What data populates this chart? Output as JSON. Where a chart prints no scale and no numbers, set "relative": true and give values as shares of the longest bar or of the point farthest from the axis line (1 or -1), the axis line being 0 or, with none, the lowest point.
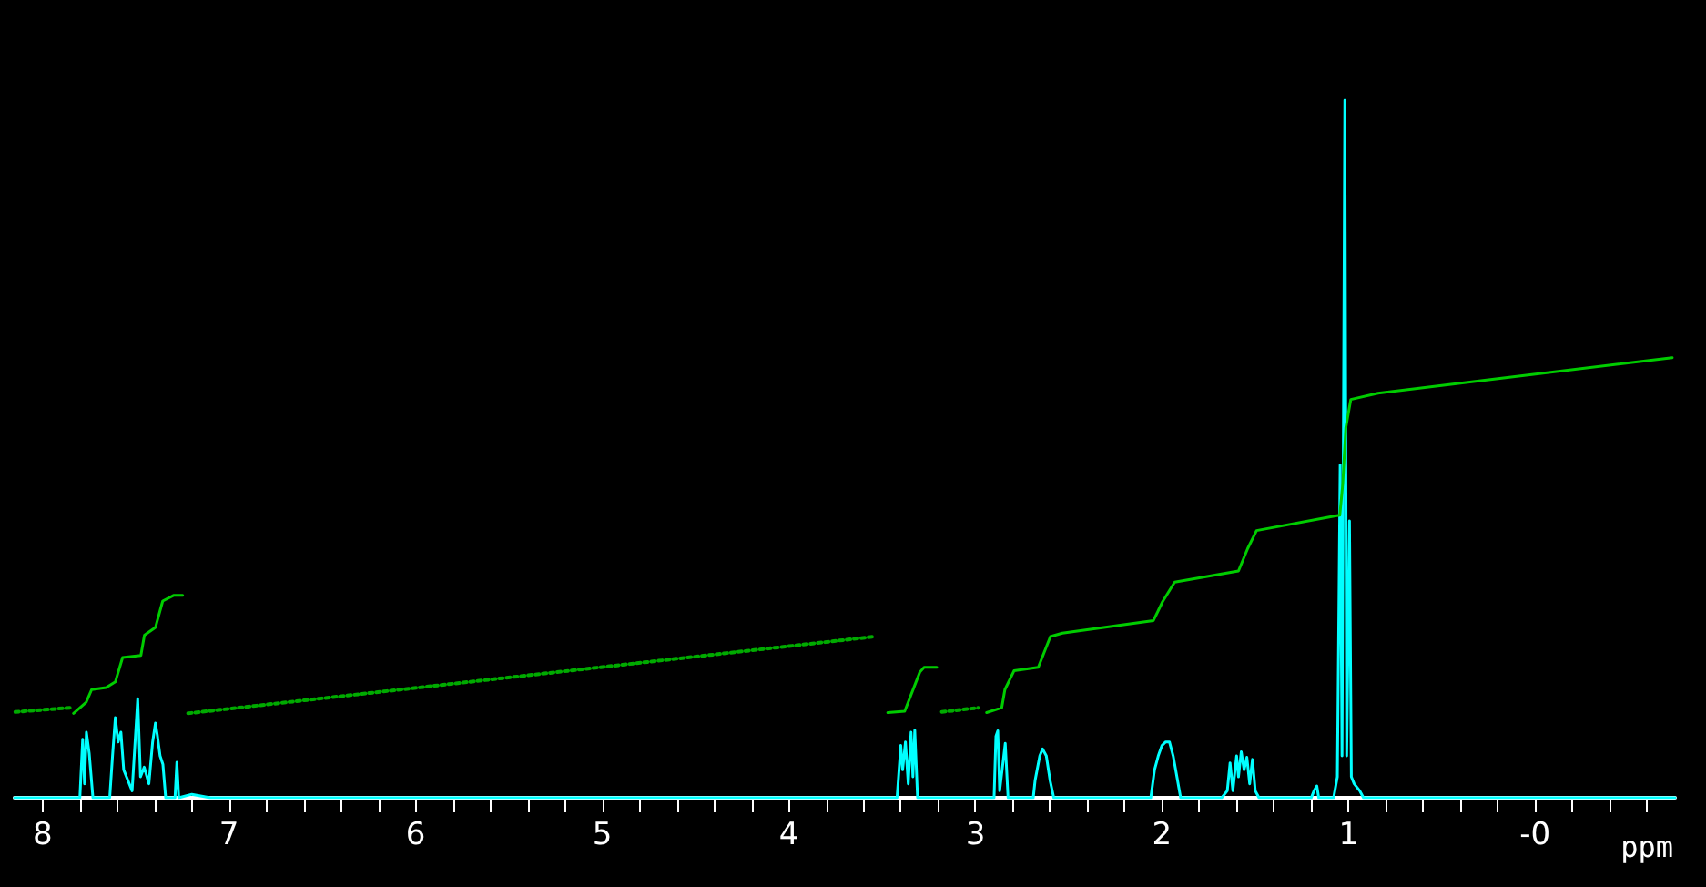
{
  "chart_data": {
    "type": "line",
    "relative": true,
    "xlabel": "ppm",
    "xlim": [
      8.15,
      -0.75
    ],
    "xticks": [
      8,
      {
        "value": 7.8,
        "label": null
      },
      {
        "value": 7.6,
        "label": null
      },
      {
        "value": 7.4,
        "label": null
      },
      {
        "value": 7.2,
        "label": null
      },
      7,
      {
        "value": 6.8,
        "label": null
      },
      {
        "value": 6.6,
        "label": null
      },
      {
        "value": 6.4,
        "label": null
      },
      {
        "value": 6.2,
        "label": null
      },
      6,
      {
        "value": 5.8,
        "label": null
      },
      {
        "value": 5.6,
        "label": null
      },
      {
        "value": 5.4,
        "label": null
      },
      {
        "value": 5.2,
        "label": null
      },
      5,
      {
        "value": 4.8,
        "label": null
      },
      {
        "value": 4.6,
        "label": null
      },
      {
        "value": 4.4,
        "label": null
      },
      {
        "value": 4.2,
        "label": null
      },
      4,
      {
        "value": 3.8,
        "label": null
      },
      {
        "value": 3.6,
        "label": null
      },
      {
        "value": 3.4,
        "label": null
      },
      {
        "value": 3.2,
        "label": null
      },
      3,
      {
        "value": 2.8,
        "label": null
      },
      {
        "value": 2.6,
        "label": null
      },
      {
        "value": 2.4,
        "label": null
      },
      {
        "value": 2.2,
        "label": null
      },
      2,
      {
        "value": 1.8,
        "label": null
      },
      {
        "value": 1.6,
        "label": null
      },
      {
        "value": 1.4,
        "label": null
      },
      {
        "value": 1.2,
        "label": null
      },
      1,
      {
        "value": 0.8,
        "label": null
      },
      {
        "value": 0.6,
        "label": null
      },
      {
        "value": 0.4,
        "label": null
      },
      {
        "value": 0.2,
        "label": null
      },
      {
        "value": 0,
        "label": "-0"
      },
      {
        "value": -0.2,
        "label": null
      },
      {
        "value": -0.4,
        "label": null
      },
      {
        "value": -0.6,
        "label": null
      }
    ],
    "grid": false,
    "marker": "none",
    "series": [
      {
        "color": "#00ffff",
        "line_style": "solid",
        "x": [
          8.15,
          7.8,
          7.785,
          7.775,
          7.765,
          7.75,
          7.73,
          7.64,
          7.625,
          7.61,
          7.595,
          7.58,
          7.565,
          7.52,
          7.49,
          7.475,
          7.455,
          7.43,
          7.41,
          7.395,
          7.385,
          7.37,
          7.355,
          7.34,
          7.29,
          7.28,
          7.27,
          7.2,
          7.1,
          3.42,
          3.4,
          3.39,
          3.375,
          3.36,
          3.345,
          3.335,
          3.325,
          3.31,
          2.9,
          2.89,
          2.88,
          2.87,
          2.84,
          2.825,
          2.69,
          2.68,
          2.655,
          2.64,
          2.62,
          2.6,
          2.58,
          2.06,
          2.04,
          2.02,
          2,
          1.98,
          1.96,
          1.94,
          1.92,
          1.9,
          1.68,
          1.65,
          1.635,
          1.62,
          1.6,
          1.59,
          1.575,
          1.56,
          1.545,
          1.53,
          1.515,
          1.5,
          1.48,
          1.2,
          1.185,
          1.17,
          1.16,
          1.08,
          1.06,
          1.045,
          1.035,
          1.02,
          1.01,
          0.995,
          0.985,
          0.97,
          0.94,
          0.92,
          -0.75
        ],
        "values": [
          0,
          0,
          0.084,
          0.02,
          0.094,
          0.064,
          0,
          0,
          0.06,
          0.115,
          0.08,
          0.094,
          0.04,
          0.01,
          0.142,
          0.03,
          0.044,
          0.02,
          0.08,
          0.107,
          0.09,
          0.06,
          0.048,
          0,
          0,
          0.051,
          0,
          0.005,
          0,
          0,
          0.075,
          0.04,
          0.08,
          0.02,
          0.094,
          0.03,
          0.097,
          0,
          0,
          0.088,
          0.096,
          0.01,
          0.078,
          0,
          0,
          0.025,
          0.06,
          0.07,
          0.06,
          0.025,
          0,
          0,
          0.04,
          0.06,
          0.075,
          0.08,
          0.08,
          0.06,
          0.03,
          0,
          0,
          0.01,
          0.05,
          0.01,
          0.06,
          0.03,
          0.066,
          0.04,
          0.058,
          0.02,
          0.055,
          0.01,
          0,
          0,
          0.01,
          0.017,
          0,
          0,
          0.03,
          0.477,
          0.06,
          1,
          0.06,
          0.397,
          0.03,
          0.02,
          0.01,
          0,
          0
        ]
      },
      {
        "color": "#00cc00",
        "line_style": "solid",
        "x": [
          7.834,
          7.766,
          7.737,
          7.659,
          7.61,
          7.571,
          7.473,
          7.454,
          7.395,
          7.356,
          7.298,
          7.249,
          5,
          3.47,
          3.379,
          3.298,
          3.275,
          3.207,
          3.1,
          2.94,
          2.859,
          2.842,
          2.793,
          2.663,
          2.598,
          2.534,
          2.046,
          1.997,
          1.932,
          1.59,
          1.541,
          1.493,
          1.07,
          1.047,
          1.031,
          1.015,
          0.988,
          0.842,
          0.29,
          -0.735
        ],
        "values": [
          0.121,
          0.137,
          0.155,
          0.158,
          0.166,
          0.201,
          0.204,
          0.233,
          0.244,
          0.282,
          0.29,
          0.29,
          null,
          0.122,
          0.124,
          0.18,
          0.187,
          0.187,
          null,
          0.122,
          0.129,
          0.155,
          0.182,
          0.187,
          0.231,
          0.236,
          0.254,
          0.281,
          0.309,
          0.325,
          0.357,
          0.383,
          0.404,
          0.405,
          0.45,
          0.53,
          0.571,
          0.58,
          0.598,
          0.631
        ]
      },
      {
        "color": "#00aa00",
        "line_style": "dotted",
        "x": [
          8.146,
          7.854,
          7.5,
          7.22,
          3.541,
          3.5,
          3.18,
          2.985
        ],
        "values": [
          0.123,
          0.129,
          null,
          0.121,
          0.231,
          null,
          0.123,
          0.129
        ]
      }
    ]
  }
}
